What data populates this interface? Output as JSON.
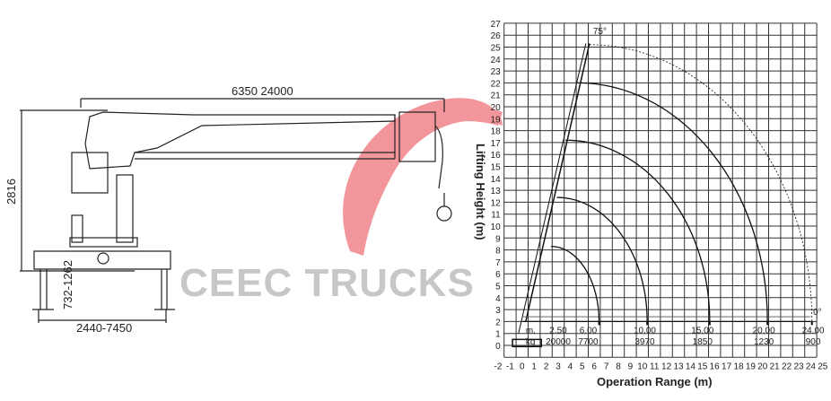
{
  "drawing": {
    "boom_dims": "6350   24000",
    "height_dim": "2816",
    "outrigger_height_dim": "732-1262",
    "outrigger_span_dim": "2440-7450"
  },
  "watermark": {
    "text": "CEEC TRUCKS",
    "logo_color": "#e8454f"
  },
  "chart_data": {
    "type": "load-chart",
    "xlabel": "Operation Range (m)",
    "ylabel": "Lifting Height (m)",
    "xlim": [
      -2,
      25
    ],
    "ylim": [
      -1,
      27
    ],
    "x_ticks": [
      -2,
      -1,
      0,
      1,
      2,
      3,
      4,
      5,
      6,
      7,
      8,
      9,
      10,
      11,
      12,
      13,
      14,
      15,
      16,
      17,
      18,
      19,
      20,
      21,
      22,
      23,
      24,
      25
    ],
    "y_ticks": [
      0,
      1,
      2,
      3,
      4,
      5,
      6,
      7,
      8,
      9,
      10,
      11,
      12,
      13,
      14,
      15,
      16,
      17,
      18,
      19,
      20,
      21,
      22,
      23,
      24,
      25,
      26,
      27
    ],
    "grid": true,
    "boom_angle_max": "75°",
    "boom_angle_min": "0°",
    "boom": {
      "base": [
        0.3,
        2
      ],
      "tip": [
        5.6,
        25.3
      ]
    },
    "arcs": [
      {
        "top": [
          5.6,
          25.2
        ],
        "end_x": 24.1,
        "style": "dotted"
      },
      {
        "top": [
          4.6,
          22
        ],
        "end_x": 20.4,
        "style": "solid"
      },
      {
        "top": [
          3.6,
          17.2
        ],
        "end_x": 15.6,
        "style": "solid"
      },
      {
        "top": [
          2.9,
          12.4
        ],
        "end_x": 10.4,
        "style": "solid"
      },
      {
        "top": [
          2.4,
          8.3
        ],
        "end_x": 6.4,
        "style": "solid"
      }
    ],
    "range_prefix": "m.",
    "load_prefix": "kg",
    "load_table": [
      {
        "range": "2.50",
        "load": "20000"
      },
      {
        "range": "6.00",
        "load": "7700"
      },
      {
        "range": "10.00",
        "load": "3970"
      },
      {
        "range": "15.00",
        "load": "1850"
      },
      {
        "range": "20.00",
        "load": "1230"
      },
      {
        "range": "24.00",
        "load": "900"
      }
    ]
  }
}
